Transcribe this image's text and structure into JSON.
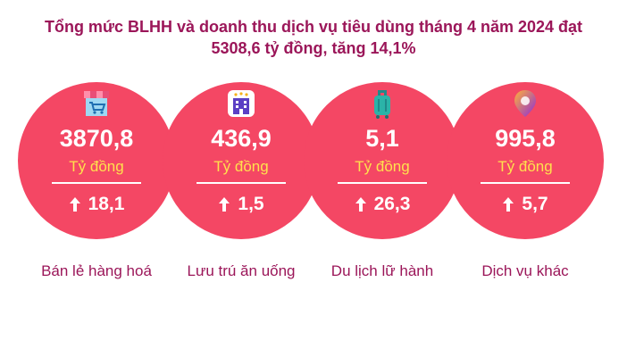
{
  "title": "Tổng mức BLHH và doanh thu dịch vụ tiêu dùng tháng 4 năm 2024 đạt 5308,6 tỷ đồng, tăng 14,1%",
  "unit": "Tỷ đồng",
  "colors": {
    "circle": "#f44764",
    "title": "#9b1659",
    "unit_text": "#ffe14d"
  },
  "items": [
    {
      "value": "3870,8",
      "growth": "18,1",
      "label": "Bán lẻ hàng hoá",
      "icon": "shop-icon"
    },
    {
      "value": "436,9",
      "growth": "1,5",
      "label": "Lưu trú ăn uống",
      "icon": "hotel-icon"
    },
    {
      "value": "5,1",
      "growth": "26,3",
      "label": "Du lịch lữ hành",
      "icon": "luggage-icon"
    },
    {
      "value": "995,8",
      "growth": "5,7",
      "label": "Dịch vụ khác",
      "icon": "location-pin-icon"
    }
  ]
}
